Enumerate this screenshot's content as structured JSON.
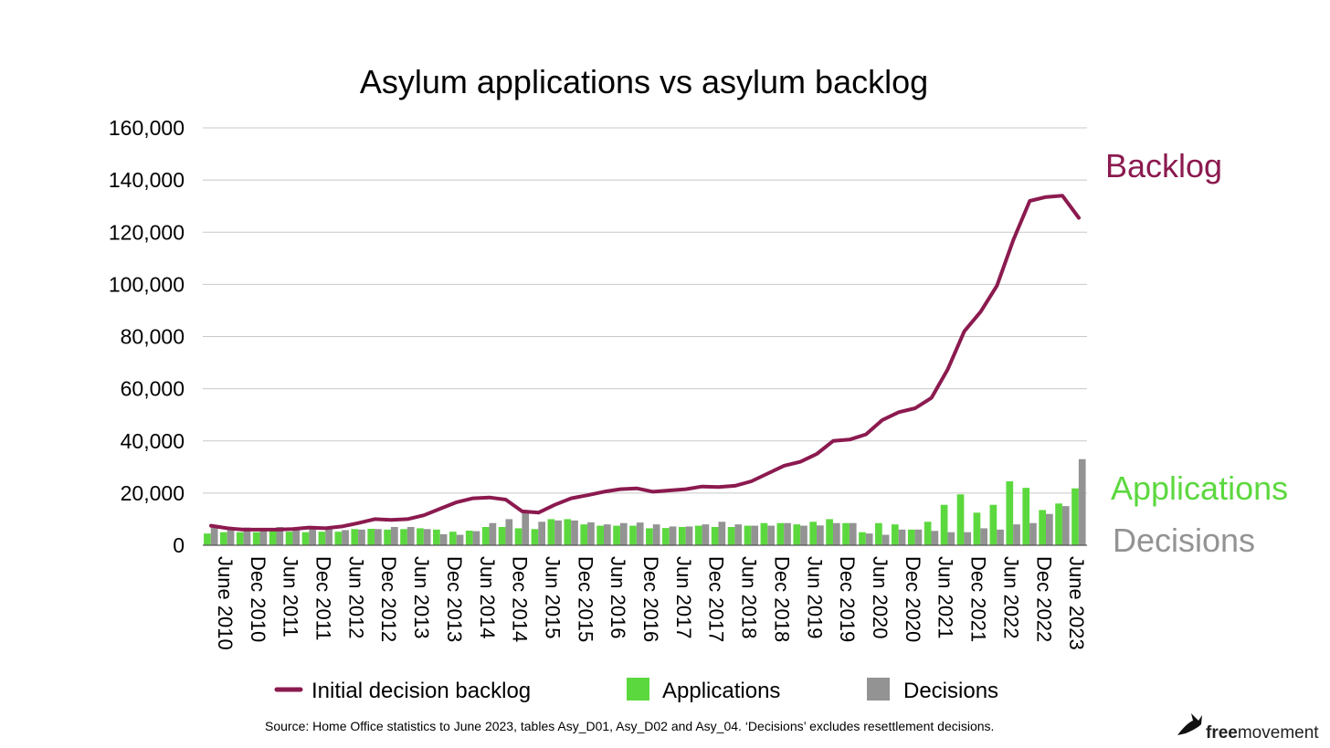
{
  "chart_data": {
    "type": "bar",
    "title": "Asylum applications vs asylum backlog",
    "xlabel": "",
    "ylabel": "",
    "ylim": [
      0,
      160000
    ],
    "yticks": [
      "160,000",
      "140,000",
      "120,000",
      "100,000",
      "80,000",
      "60,000",
      "40,000",
      "20,000",
      "0"
    ],
    "grid": true,
    "legend": "bottom",
    "categories": [
      "June 2010",
      "Sep 2010",
      "Dec 2010",
      "Mar 2011",
      "Jun 2011",
      "Sep 2011",
      "Dec 2011",
      "Mar 2012",
      "Jun 2012",
      "Sep 2012",
      "Dec 2012",
      "Mar 2013",
      "Jun 2013",
      "Sep 2013",
      "Dec 2013",
      "Mar 2014",
      "Jun 2014",
      "Sep 2014",
      "Dec 2014",
      "Mar 2015",
      "Jun 2015",
      "Sep 2015",
      "Dec 2015",
      "Mar 2016",
      "Jun 2016",
      "Sep 2016",
      "Dec 2016",
      "Mar 2017",
      "Jun 2017",
      "Sep 2017",
      "Dec 2017",
      "Mar 2018",
      "Jun 2018",
      "Sep 2018",
      "Dec 2018",
      "Mar 2019",
      "Jun 2019",
      "Sep 2019",
      "Dec 2019",
      "Mar 2020",
      "Jun 2020",
      "Sep 2020",
      "Dec 2020",
      "Mar 2021",
      "Jun 2021",
      "Sep 2021",
      "Dec 2021",
      "Mar 2022",
      "Jun 2022",
      "Sep 2022",
      "Dec 2022",
      "Mar 2023",
      "June 2023",
      "Sep 2023"
    ],
    "x_tick_labels": [
      "June 2010",
      "Dec 2010",
      "Jun 2011",
      "Dec 2011",
      "Jun 2012",
      "Dec 2012",
      "Jun 2013",
      "Dec 2013",
      "Jun 2014",
      "Dec 2014",
      "Jun 2015",
      "Dec 2015",
      "Jun 2016",
      "Dec 2016",
      "Jun 2017",
      "Dec 2017",
      "Jun 2018",
      "Dec 2018",
      "Jun 2019",
      "Dec 2019",
      "Jun 2020",
      "Dec 2020",
      "Jun 2021",
      "Dec 2021",
      "Jun 2022",
      "Dec 2022",
      "June 2023"
    ],
    "series": [
      {
        "name": "Initial decision backlog",
        "type": "line",
        "color": "#8b1a4f",
        "values": [
          7500,
          6500,
          6000,
          6000,
          6000,
          6200,
          6800,
          6500,
          7200,
          8500,
          10000,
          9700,
          10000,
          11500,
          14000,
          16500,
          18000,
          18300,
          17500,
          13000,
          12500,
          15500,
          18000,
          19200,
          20500,
          21500,
          21800,
          20500,
          21000,
          21500,
          22500,
          22300,
          22800,
          24500,
          27500,
          30500,
          32000,
          35000,
          40000,
          40500,
          42500,
          48000,
          51000,
          52500,
          56500,
          67500,
          82000,
          89500,
          99500,
          117000,
          132000,
          133500,
          134000,
          125500
        ]
      },
      {
        "name": "Applications",
        "type": "bar",
        "color": "#5cd83f",
        "values": [
          4500,
          5000,
          5000,
          5000,
          5500,
          5200,
          5000,
          5200,
          5200,
          6200,
          6300,
          6000,
          6200,
          6500,
          6000,
          5200,
          5600,
          7000,
          7000,
          6500,
          6200,
          10000,
          10000,
          8000,
          7500,
          7500,
          7500,
          6500,
          6600,
          7000,
          7500,
          7000,
          7000,
          7500,
          8500,
          8500,
          8000,
          9000,
          10000,
          8500,
          5000,
          8500,
          8000,
          6000,
          9000,
          15500,
          19500,
          12500,
          15500,
          24500,
          22000,
          13500,
          16000,
          21800
        ]
      },
      {
        "name": "Decisions",
        "type": "bar",
        "color": "#939393",
        "values": [
          6800,
          6000,
          6800,
          6500,
          7000,
          6800,
          6800,
          6200,
          5800,
          6000,
          6200,
          7000,
          7000,
          6200,
          4200,
          4000,
          5400,
          8500,
          10000,
          13000,
          9000,
          9500,
          9500,
          8800,
          8000,
          8500,
          8700,
          8000,
          7200,
          7200,
          8000,
          9000,
          8000,
          7500,
          7500,
          8500,
          7500,
          7600,
          8500,
          8500,
          4500,
          4000,
          6000,
          6000,
          5500,
          5000,
          5000,
          6500,
          6000,
          8000,
          8500,
          12000,
          15000,
          33000
        ]
      }
    ],
    "legend_entries": [
      "Initial decision backlog",
      "Applications",
      "Decisions"
    ],
    "annotations": [
      "Backlog",
      "Applications",
      "Decisions"
    ]
  },
  "source_note": "Source: Home Office statistics to June 2023, tables Asy_D01, Asy_D02 and Asy_04. ‘Decisions’ excludes resettlement decisions.",
  "brand": {
    "prefix": "free",
    "suffix": "movement",
    "logo_icon": "bird-icon"
  },
  "colors": {
    "backlog": "#8b1a4f",
    "applications": "#5cd83f",
    "decisions": "#939393",
    "grid": "#c8c8c8",
    "axis": "#555555"
  }
}
